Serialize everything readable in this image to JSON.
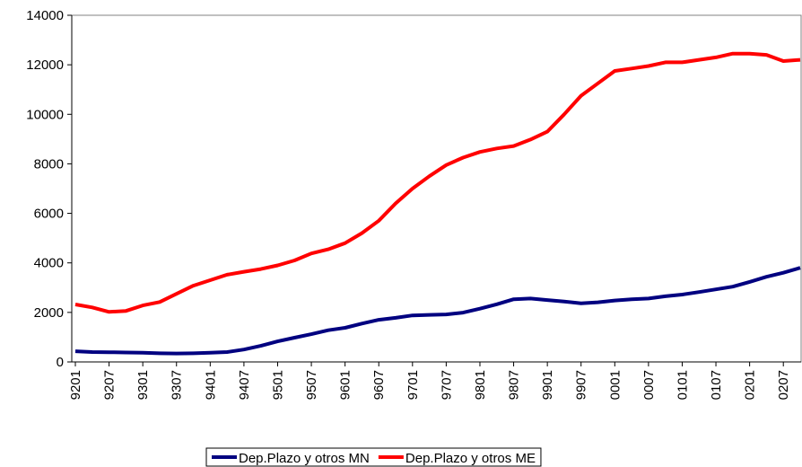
{
  "chart_data": {
    "type": "line",
    "categories": [
      "9201",
      null,
      "9207",
      null,
      "9301",
      null,
      "9307",
      null,
      "9401",
      null,
      "9407",
      null,
      "9501",
      null,
      "9507",
      null,
      "9601",
      null,
      "9607",
      null,
      "9701",
      null,
      "9707",
      null,
      "9801",
      null,
      "9807",
      null,
      "9901",
      null,
      "9907",
      null,
      "0001",
      null,
      "0007",
      null,
      "0101",
      null,
      "0107",
      null,
      "0201",
      null,
      "0207",
      null
    ],
    "series": [
      {
        "name": "Dep.Plazo y otros MN",
        "color": "#000080",
        "values": [
          430,
          400,
          390,
          380,
          370,
          350,
          340,
          350,
          370,
          400,
          500,
          650,
          830,
          980,
          1120,
          1280,
          1380,
          1550,
          1700,
          1780,
          1880,
          1900,
          1920,
          1990,
          2150,
          2330,
          2530,
          2560,
          2500,
          2440,
          2370,
          2410,
          2480,
          2530,
          2560,
          2650,
          2720,
          2820,
          2930,
          3040,
          3230,
          3440,
          3600,
          3800
        ]
      },
      {
        "name": "Dep.Plazo y otros ME",
        "color": "#ff0000",
        "values": [
          2320,
          2200,
          2020,
          2060,
          2280,
          2420,
          2750,
          3080,
          3300,
          3520,
          3640,
          3750,
          3900,
          4100,
          4380,
          4550,
          4800,
          5200,
          5700,
          6400,
          7000,
          7500,
          7950,
          8250,
          8480,
          8620,
          8720,
          8980,
          9300,
          10000,
          10750,
          11250,
          11750,
          11850,
          11950,
          12100,
          12100,
          12200,
          12300,
          12450,
          12450,
          12400,
          12150,
          12200
        ]
      }
    ],
    "ylim": [
      0,
      14000
    ],
    "yticks": [
      0,
      2000,
      4000,
      6000,
      8000,
      10000,
      12000,
      14000
    ],
    "legend": "bottom"
  }
}
